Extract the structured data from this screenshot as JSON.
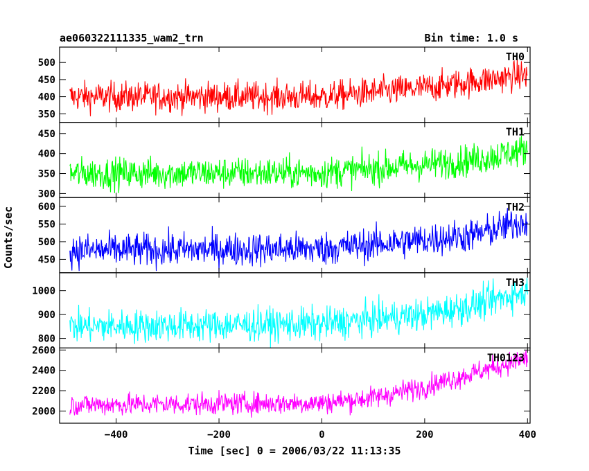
{
  "chart_data": {
    "type": "line",
    "title": "ae060322111335_wam2_trn",
    "bin_time_label": "Bin time: 1.0 s",
    "ylabel": "Counts/sec",
    "xlabel": "Time [sec] 0 = 2006/03/22 11:13:35",
    "xlim": [
      -510,
      405
    ],
    "x_ticks": [
      -400,
      -200,
      0,
      200,
      400
    ],
    "x_tick_labels": [
      "−400",
      "−200",
      "0",
      "200",
      "400"
    ],
    "panels": [
      {
        "name": "TH0",
        "color": "#ff0000",
        "ylim": [
          325,
          545
        ],
        "y_ticks": [
          350,
          400,
          450,
          500
        ],
        "y_tick_labels": [
          "350",
          "400",
          "450",
          "500"
        ],
        "trend": [
          [
            -490,
            400
          ],
          [
            0,
            400
          ],
          [
            200,
            425
          ],
          [
            300,
            445
          ],
          [
            400,
            465
          ]
        ],
        "noise": 22
      },
      {
        "name": "TH1",
        "color": "#00ff00",
        "ylim": [
          290,
          478
        ],
        "y_ticks": [
          300,
          350,
          400,
          450
        ],
        "y_tick_labels": [
          "300",
          "350",
          "400",
          "450"
        ],
        "trend": [
          [
            -490,
            350
          ],
          [
            0,
            352
          ],
          [
            200,
            372
          ],
          [
            300,
            385
          ],
          [
            400,
            410
          ]
        ],
        "noise": 20
      },
      {
        "name": "TH2",
        "color": "#0000ff",
        "ylim": [
          412,
          625
        ],
        "y_ticks": [
          450,
          500,
          550,
          600
        ],
        "y_tick_labels": [
          "450",
          "500",
          "550",
          "600"
        ],
        "trend": [
          [
            -490,
            475
          ],
          [
            0,
            480
          ],
          [
            200,
            505
          ],
          [
            300,
            520
          ],
          [
            400,
            560
          ]
        ],
        "noise": 24
      },
      {
        "name": "TH3",
        "color": "#00ffff",
        "ylim": [
          760,
          1075
        ],
        "y_ticks": [
          800,
          900,
          1000
        ],
        "y_tick_labels": [
          "800",
          "900",
          "1000"
        ],
        "trend": [
          [
            -490,
            850
          ],
          [
            0,
            860
          ],
          [
            200,
            900
          ],
          [
            300,
            940
          ],
          [
            400,
            1000
          ]
        ],
        "noise": 35
      },
      {
        "name": "TH0123",
        "color": "#ff00ff",
        "ylim": [
          1880,
          2620
        ],
        "y_ticks": [
          2000,
          2200,
          2400,
          2600
        ],
        "y_tick_labels": [
          "2000",
          "2200",
          "2400",
          "2600"
        ],
        "trend": [
          [
            -490,
            2060
          ],
          [
            0,
            2080
          ],
          [
            100,
            2130
          ],
          [
            200,
            2240
          ],
          [
            300,
            2380
          ],
          [
            400,
            2520
          ]
        ],
        "noise": 55
      }
    ],
    "grid": false,
    "legend": "panel labels top-right of each panel"
  }
}
